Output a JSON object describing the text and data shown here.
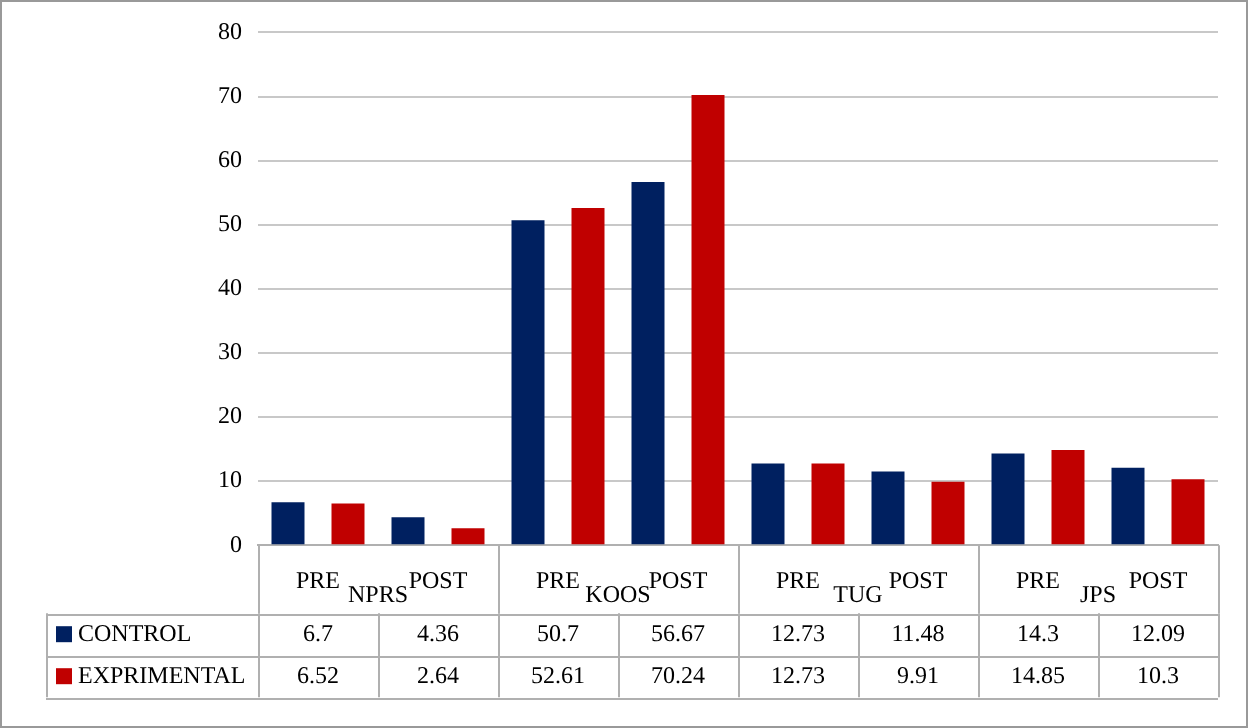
{
  "chart_data": {
    "type": "bar",
    "categories": [
      "PRE",
      "POST",
      "PRE",
      "POST",
      "PRE",
      "POST",
      "PRE",
      "POST"
    ],
    "annotations": [
      "NPRS",
      "KOOS",
      "TUG",
      "JPS"
    ],
    "series": [
      {
        "name": "CONTROL",
        "color": "#002060",
        "values": [
          6.7,
          4.36,
          50.7,
          56.67,
          12.73,
          11.48,
          14.3,
          12.09
        ]
      },
      {
        "name": "EXPRIMENTAL",
        "color": "#c00000",
        "values": [
          6.52,
          2.64,
          52.61,
          70.24,
          12.73,
          9.91,
          14.85,
          10.3
        ]
      }
    ],
    "ylim": [
      0,
      80
    ],
    "yticks": [
      0,
      10,
      20,
      30,
      40,
      50,
      60,
      70,
      80
    ],
    "grid": "y",
    "legend": "bottom",
    "data_labels": true
  }
}
